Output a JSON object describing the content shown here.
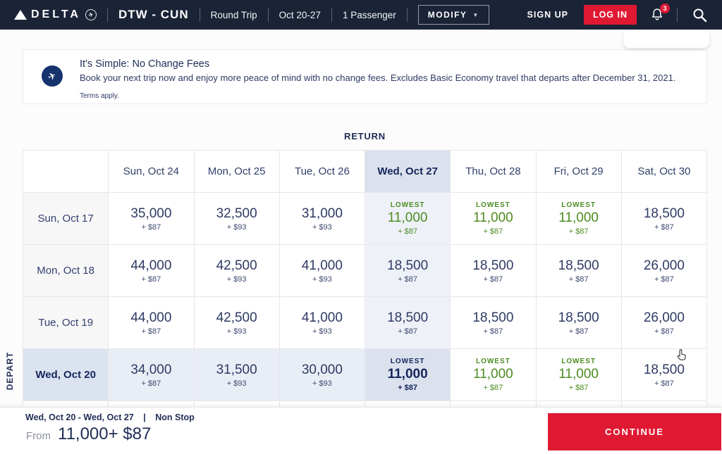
{
  "navbar": {
    "brand": "DELTA",
    "route": "DTW - CUN",
    "trip_type": "Round Trip",
    "dates": "Oct 20-27",
    "passengers": "1 Passenger",
    "modify_label": "MODIFY",
    "modify_caret": "▼",
    "sign_up_label": "SIGN UP",
    "log_in_label": "LOG IN",
    "notification_count": "3",
    "plane_glyph": "✈"
  },
  "banner": {
    "title": "It's Simple: No Change Fees",
    "body": "Book your next trip now and enjoy more peace of mind with no change fees. Excludes Basic Economy travel that departs after December 31, 2021.",
    "terms": "Terms apply.",
    "icon_glyph": "✈"
  },
  "matrix": {
    "axis_return": "RETURN",
    "axis_depart": "DEPART",
    "lowest_label": "LOWEST",
    "selected_column": 3,
    "selected_row": 3,
    "columns": [
      "Sun, Oct 24",
      "Mon, Oct 25",
      "Tue, Oct 26",
      "Wed, Oct 27",
      "Thu, Oct 28",
      "Fri, Oct 29",
      "Sat, Oct 30"
    ],
    "rows": [
      {
        "label": "Sun, Oct 17",
        "cells": [
          {
            "miles": "35,000",
            "fee": "+ $87",
            "lowest": false
          },
          {
            "miles": "32,500",
            "fee": "+ $93",
            "lowest": false
          },
          {
            "miles": "31,000",
            "fee": "+ $93",
            "lowest": false
          },
          {
            "miles": "11,000",
            "fee": "+ $87",
            "lowest": true
          },
          {
            "miles": "11,000",
            "fee": "+ $87",
            "lowest": true
          },
          {
            "miles": "11,000",
            "fee": "+ $87",
            "lowest": true
          },
          {
            "miles": "18,500",
            "fee": "+ $87",
            "lowest": false
          }
        ]
      },
      {
        "label": "Mon, Oct 18",
        "cells": [
          {
            "miles": "44,000",
            "fee": "+ $87",
            "lowest": false
          },
          {
            "miles": "42,500",
            "fee": "+ $93",
            "lowest": false
          },
          {
            "miles": "41,000",
            "fee": "+ $93",
            "lowest": false
          },
          {
            "miles": "18,500",
            "fee": "+ $87",
            "lowest": false
          },
          {
            "miles": "18,500",
            "fee": "+ $87",
            "lowest": false
          },
          {
            "miles": "18,500",
            "fee": "+ $87",
            "lowest": false
          },
          {
            "miles": "26,000",
            "fee": "+ $87",
            "lowest": false
          }
        ]
      },
      {
        "label": "Tue, Oct 19",
        "cells": [
          {
            "miles": "44,000",
            "fee": "+ $87",
            "lowest": false
          },
          {
            "miles": "42,500",
            "fee": "+ $93",
            "lowest": false
          },
          {
            "miles": "41,000",
            "fee": "+ $93",
            "lowest": false
          },
          {
            "miles": "18,500",
            "fee": "+ $87",
            "lowest": false
          },
          {
            "miles": "18,500",
            "fee": "+ $87",
            "lowest": false
          },
          {
            "miles": "18,500",
            "fee": "+ $87",
            "lowest": false
          },
          {
            "miles": "26,000",
            "fee": "+ $87",
            "lowest": false
          }
        ]
      },
      {
        "label": "Wed, Oct 20",
        "cells": [
          {
            "miles": "34,000",
            "fee": "+ $87",
            "lowest": false
          },
          {
            "miles": "31,500",
            "fee": "+ $93",
            "lowest": false
          },
          {
            "miles": "30,000",
            "fee": "+ $93",
            "lowest": false
          },
          {
            "miles": "11,000",
            "fee": "+ $87",
            "lowest": true
          },
          {
            "miles": "11,000",
            "fee": "+ $87",
            "lowest": true
          },
          {
            "miles": "11,000",
            "fee": "+ $87",
            "lowest": true
          },
          {
            "miles": "18,500",
            "fee": "+ $87",
            "lowest": false
          }
        ]
      }
    ]
  },
  "summary": {
    "dates": "Wed, Oct 20  - Wed, Oct 27",
    "pipe": "|",
    "stops": "Non Stop",
    "from_label": "From",
    "price": "11,000+ $87",
    "continue_label": "CONTINUE"
  },
  "colors": {
    "navbar_bg": "#1b2337",
    "accent_red": "#e01933",
    "lowest_green": "#4c8b1f",
    "navy_text": "#1f2d55",
    "selected_bg": "#dbe2ee",
    "tint_bg": "#eef1f8"
  }
}
